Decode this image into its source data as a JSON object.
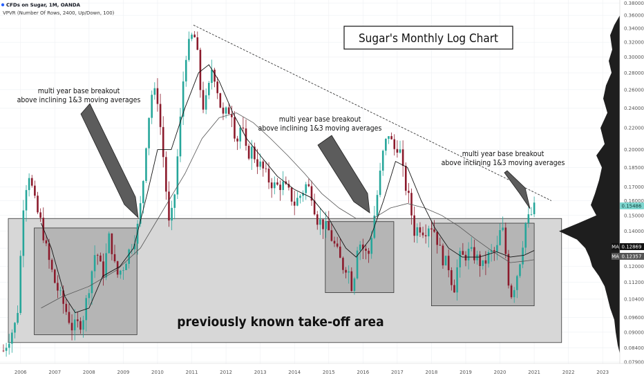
{
  "header": {
    "symbol_line": "CFDs on Sugar, 1M, OANDA",
    "indicator_line": "VPVR (Number Of Rows, 2400, Up/Down, 100)"
  },
  "colors": {
    "up": "#26a69a",
    "down": "#8b1a2b",
    "ma_fast": "#111111",
    "ma_slow": "#555555",
    "zone_fill": "#d7d7d7",
    "box_fill": "#b5b5b5",
    "volume_profile": "#1e1e1e",
    "arrow": "#5a5a5a",
    "last_price_tag": "#7fd6cf"
  },
  "annotations": {
    "title": "Sugar's Monthly Log Chart",
    "breakout_1_line1": "multi year base breakout",
    "breakout_1_line2": "above inclining 1&3 moving averages",
    "breakout_2_line1": "multi year base breakout",
    "breakout_2_line2": "above inclining 1&3 moving averages",
    "breakout_3_line1": "multi year base breakout",
    "breakout_3_line2": "above inclining 1&3 moving averages",
    "zone_label": "previously known take-off area"
  },
  "price_labels": {
    "last": "0.15486",
    "ma_label_1": "MA",
    "ma_value_1": "0.12869",
    "ma_label_2": "MA",
    "ma_value_2": "0.12357"
  },
  "chart_data": {
    "type": "candlestick",
    "scale": "log",
    "ylim": [
      0.0785,
      0.385
    ],
    "xlim": [
      2005.4,
      2023.5
    ],
    "y_ticks": [
      "0.38000",
      "0.36000",
      "0.34000",
      "0.32000",
      "0.30000",
      "0.28000",
      "0.26000",
      "0.24000",
      "0.22000",
      "0.20000",
      "0.18500",
      "0.17000",
      "0.16000",
      "0.15000",
      "0.14000",
      "0.13000",
      "0.12000",
      "0.11200",
      "0.10400",
      "0.09600",
      "0.09000",
      "0.08400",
      "0.07900"
    ],
    "x_ticks": [
      "2006",
      "2007",
      "2008",
      "2009",
      "2010",
      "2011",
      "2012",
      "2013",
      "2014",
      "2015",
      "2016",
      "2017",
      "2018",
      "2019",
      "2020",
      "2021",
      "2022",
      "2023"
    ],
    "monthly_close_path": [
      [
        2005.5,
        0.083
      ],
      [
        2005.9,
        0.095
      ],
      [
        2006.1,
        0.165
      ],
      [
        2006.25,
        0.18
      ],
      [
        2006.45,
        0.155
      ],
      [
        2006.6,
        0.145
      ],
      [
        2006.8,
        0.125
      ],
      [
        2007.0,
        0.112
      ],
      [
        2007.3,
        0.1
      ],
      [
        2007.5,
        0.092
      ],
      [
        2007.8,
        0.094
      ],
      [
        2008.0,
        0.11
      ],
      [
        2008.2,
        0.13
      ],
      [
        2008.4,
        0.115
      ],
      [
        2008.6,
        0.138
      ],
      [
        2008.8,
        0.115
      ],
      [
        2009.0,
        0.12
      ],
      [
        2009.2,
        0.13
      ],
      [
        2009.4,
        0.14
      ],
      [
        2009.55,
        0.165
      ],
      [
        2009.7,
        0.22
      ],
      [
        2009.85,
        0.26
      ],
      [
        2010.0,
        0.25
      ],
      [
        2010.15,
        0.2
      ],
      [
        2010.35,
        0.14
      ],
      [
        2010.5,
        0.165
      ],
      [
        2010.65,
        0.22
      ],
      [
        2010.8,
        0.3
      ],
      [
        2010.95,
        0.32
      ],
      [
        2011.05,
        0.335
      ],
      [
        2011.15,
        0.31
      ],
      [
        2011.3,
        0.24
      ],
      [
        2011.45,
        0.25
      ],
      [
        2011.6,
        0.29
      ],
      [
        2011.75,
        0.26
      ],
      [
        2011.9,
        0.23
      ],
      [
        2012.0,
        0.235
      ],
      [
        2012.15,
        0.24
      ],
      [
        2012.3,
        0.205
      ],
      [
        2012.45,
        0.225
      ],
      [
        2012.6,
        0.195
      ],
      [
        2012.75,
        0.2
      ],
      [
        2012.9,
        0.19
      ],
      [
        2013.05,
        0.185
      ],
      [
        2013.25,
        0.175
      ],
      [
        2013.45,
        0.17
      ],
      [
        2013.65,
        0.172
      ],
      [
        2013.85,
        0.165
      ],
      [
        2014.0,
        0.158
      ],
      [
        2014.2,
        0.165
      ],
      [
        2014.35,
        0.172
      ],
      [
        2014.5,
        0.165
      ],
      [
        2014.65,
        0.148
      ],
      [
        2014.8,
        0.145
      ],
      [
        2015.0,
        0.14
      ],
      [
        2015.2,
        0.13
      ],
      [
        2015.4,
        0.12
      ],
      [
        2015.55,
        0.12
      ],
      [
        2015.7,
        0.108
      ],
      [
        2015.85,
        0.135
      ],
      [
        2016.0,
        0.13
      ],
      [
        2016.15,
        0.125
      ],
      [
        2016.3,
        0.145
      ],
      [
        2016.45,
        0.17
      ],
      [
        2016.6,
        0.2
      ],
      [
        2016.75,
        0.215
      ],
      [
        2016.9,
        0.2
      ],
      [
        2017.05,
        0.205
      ],
      [
        2017.2,
        0.175
      ],
      [
        2017.35,
        0.16
      ],
      [
        2017.5,
        0.14
      ],
      [
        2017.65,
        0.143
      ],
      [
        2017.8,
        0.14
      ],
      [
        2017.95,
        0.145
      ],
      [
        2018.1,
        0.14
      ],
      [
        2018.3,
        0.125
      ],
      [
        2018.5,
        0.12
      ],
      [
        2018.65,
        0.108
      ],
      [
        2018.8,
        0.125
      ],
      [
        2018.95,
        0.125
      ],
      [
        2019.1,
        0.128
      ],
      [
        2019.3,
        0.125
      ],
      [
        2019.5,
        0.12
      ],
      [
        2019.7,
        0.127
      ],
      [
        2019.9,
        0.128
      ],
      [
        2020.05,
        0.145
      ],
      [
        2020.15,
        0.13
      ],
      [
        2020.3,
        0.105
      ],
      [
        2020.45,
        0.112
      ],
      [
        2020.6,
        0.125
      ],
      [
        2020.75,
        0.145
      ],
      [
        2020.9,
        0.15
      ],
      [
        2021.0,
        0.15486
      ]
    ],
    "ma_fast_path": [
      [
        2006.6,
        0.145
      ],
      [
        2006.9,
        0.13
      ],
      [
        2007.3,
        0.105
      ],
      [
        2007.6,
        0.098
      ],
      [
        2008.0,
        0.1
      ],
      [
        2008.4,
        0.115
      ],
      [
        2008.9,
        0.12
      ],
      [
        2009.3,
        0.13
      ],
      [
        2009.7,
        0.165
      ],
      [
        2010.0,
        0.2
      ],
      [
        2010.4,
        0.2
      ],
      [
        2010.8,
        0.24
      ],
      [
        2011.2,
        0.28
      ],
      [
        2011.5,
        0.29
      ],
      [
        2011.8,
        0.27
      ],
      [
        2012.2,
        0.235
      ],
      [
        2012.6,
        0.21
      ],
      [
        2013.0,
        0.195
      ],
      [
        2013.5,
        0.178
      ],
      [
        2014.0,
        0.168
      ],
      [
        2014.5,
        0.162
      ],
      [
        2015.0,
        0.148
      ],
      [
        2015.5,
        0.13
      ],
      [
        2015.8,
        0.125
      ],
      [
        2016.2,
        0.135
      ],
      [
        2016.6,
        0.16
      ],
      [
        2016.95,
        0.19
      ],
      [
        2017.3,
        0.185
      ],
      [
        2017.7,
        0.16
      ],
      [
        2018.1,
        0.142
      ],
      [
        2018.5,
        0.13
      ],
      [
        2018.9,
        0.125
      ],
      [
        2019.4,
        0.125
      ],
      [
        2019.9,
        0.128
      ],
      [
        2020.3,
        0.125
      ],
      [
        2020.7,
        0.126
      ],
      [
        2021.0,
        0.12869
      ]
    ],
    "ma_slow_path": [
      [
        2006.6,
        0.1
      ],
      [
        2007.2,
        0.105
      ],
      [
        2008.0,
        0.11
      ],
      [
        2008.8,
        0.118
      ],
      [
        2009.5,
        0.13
      ],
      [
        2010.2,
        0.155
      ],
      [
        2010.8,
        0.18
      ],
      [
        2011.3,
        0.21
      ],
      [
        2011.8,
        0.23
      ],
      [
        2012.3,
        0.235
      ],
      [
        2012.8,
        0.225
      ],
      [
        2013.3,
        0.21
      ],
      [
        2013.8,
        0.195
      ],
      [
        2014.3,
        0.18
      ],
      [
        2014.8,
        0.165
      ],
      [
        2015.3,
        0.155
      ],
      [
        2015.8,
        0.148
      ],
      [
        2016.3,
        0.148
      ],
      [
        2016.8,
        0.155
      ],
      [
        2017.3,
        0.158
      ],
      [
        2017.8,
        0.155
      ],
      [
        2018.3,
        0.15
      ],
      [
        2018.8,
        0.143
      ],
      [
        2019.3,
        0.135
      ],
      [
        2019.8,
        0.128
      ],
      [
        2020.3,
        0.122
      ],
      [
        2020.8,
        0.123
      ],
      [
        2021.0,
        0.12357
      ]
    ],
    "trendline": [
      [
        2011.05,
        0.345
      ],
      [
        2021.5,
        0.16
      ]
    ],
    "takeoff_zone": {
      "x": [
        2005.4,
        2021.8
      ],
      "y": [
        0.086,
        0.148
      ]
    },
    "base_boxes": [
      {
        "x": [
          2006.4,
          2009.4
        ],
        "y": [
          0.089,
          0.142
        ]
      },
      {
        "x": [
          2014.9,
          2016.9
        ],
        "y": [
          0.107,
          0.146
        ]
      },
      {
        "x": [
          2018.0,
          2021.0
        ],
        "y": [
          0.101,
          0.145
        ]
      }
    ]
  }
}
